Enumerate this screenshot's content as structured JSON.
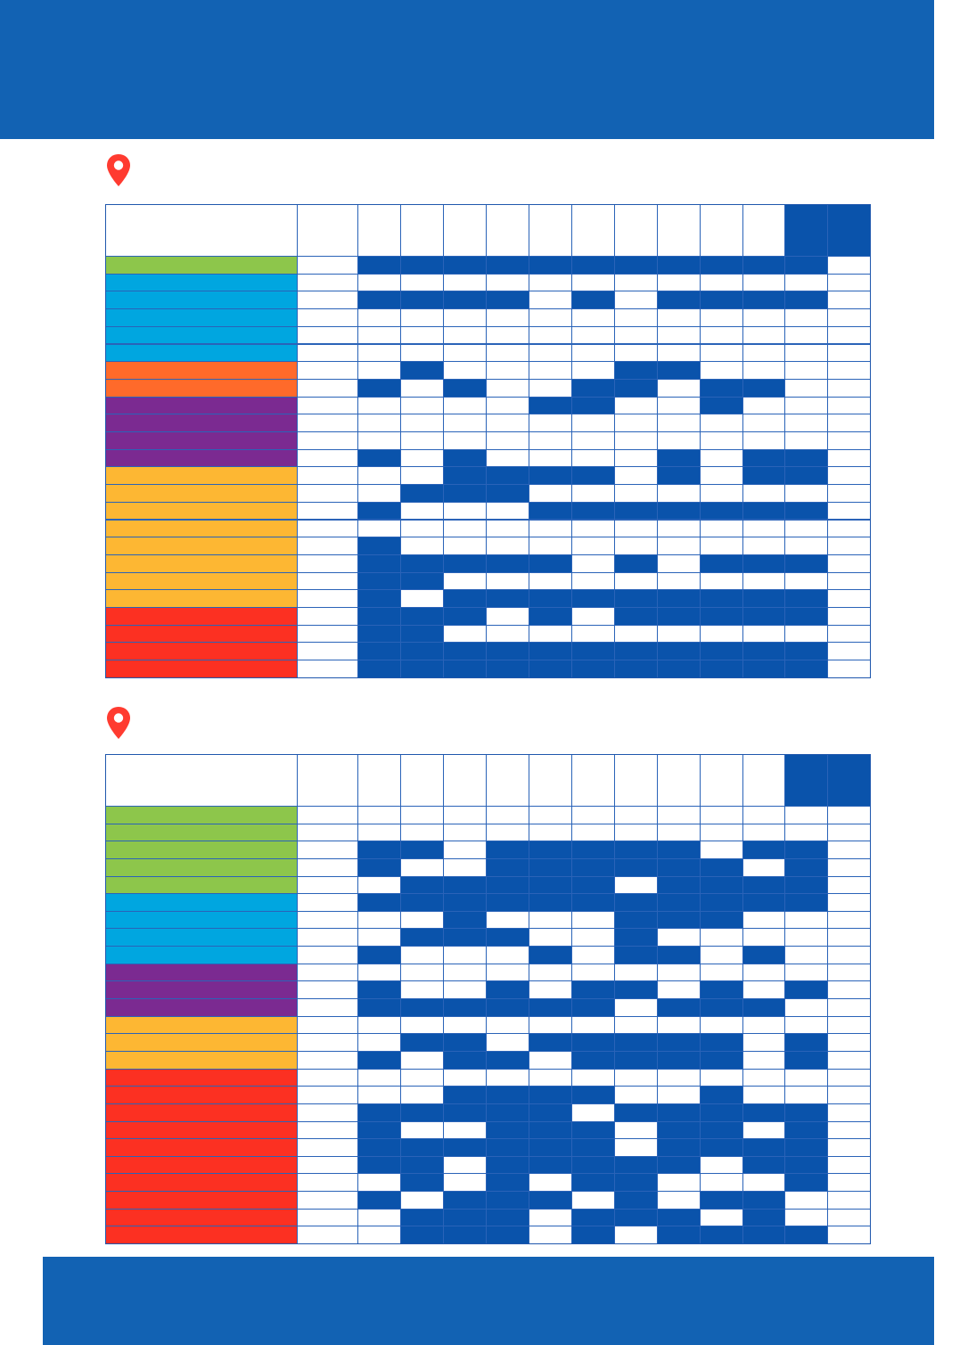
{
  "colors": {
    "band": "#1262b3",
    "filled": "#0a53ab",
    "grid_line": "#2a63b8",
    "pin": "#ff3b30",
    "green": "#8dc64b",
    "blue": "#00a6e0",
    "orange": "#ff6a2a",
    "purple": "#7b2a91",
    "yellow": "#fdb733",
    "red": "#fc3022"
  },
  "icons": {
    "location_pin": "location-pin-icon"
  },
  "tables": [
    {
      "row_colors": [
        "green",
        "blue",
        "blue",
        "blue",
        "blue",
        "blue",
        "orange",
        "orange",
        "purple",
        "purple",
        "purple",
        "purple",
        "yellow",
        "yellow",
        "yellow",
        "yellow",
        "yellow",
        "yellow",
        "yellow",
        "yellow",
        "red",
        "red",
        "red",
        "red"
      ],
      "cells": [
        "11111111111",
        "00000000000",
        "11110101111",
        "00000000000",
        "00000000000",
        "00000000000",
        "01000011000",
        "10100110110",
        "00001100100",
        "00000000000",
        "00000000000",
        "10100001011",
        "00111101011",
        "01110000000",
        "10001111111",
        "00000000000",
        "10000000000",
        "11111010111",
        "11000000000",
        "10111111111",
        "11101011111",
        "11000000000",
        "11111111111",
        "11111111111"
      ]
    },
    {
      "row_colors": [
        "green",
        "green",
        "green",
        "green",
        "green",
        "blue",
        "blue",
        "blue",
        "blue",
        "purple",
        "purple",
        "purple",
        "yellow",
        "yellow",
        "yellow",
        "red",
        "red",
        "red",
        "red",
        "red",
        "red",
        "red",
        "red",
        "red",
        "red"
      ],
      "cells": [
        "00000000000",
        "00000000000",
        "11011111011",
        "10011111101",
        "01111101111",
        "11111111111",
        "00100011100",
        "01110010000",
        "10001011010",
        "00000000000",
        "10010110101",
        "11111101110",
        "00000000000",
        "01101111101",
        "10110111101",
        "00000000000",
        "00111100100",
        "11111011111",
        "10011101101",
        "11111101111",
        "11011111011",
        "01010110001",
        "10111010110",
        "01110111010",
        "01110101111"
      ]
    }
  ]
}
